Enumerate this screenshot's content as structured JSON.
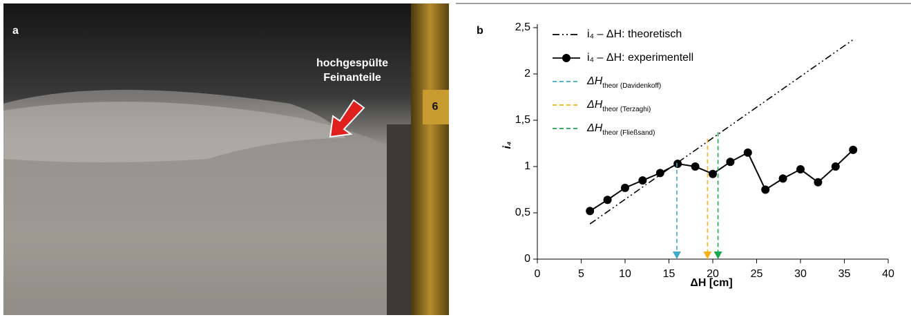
{
  "photo": {
    "label": "a",
    "annotation": [
      "hochgespülte",
      "Feinanteile"
    ]
  },
  "chart_data": {
    "type": "line",
    "label": "b",
    "x_label": "ΔH [cm]",
    "y_label": "i₄",
    "xlim": [
      0,
      40
    ],
    "xticks": [
      0,
      5,
      10,
      15,
      20,
      25,
      30,
      35,
      40
    ],
    "ylim": [
      0,
      2.5
    ],
    "yticks": [
      0,
      {
        "value": 0.5,
        "label": "0,5"
      },
      1,
      {
        "value": 1.5,
        "label": "1,5"
      },
      2,
      {
        "value": 2.5,
        "label": "2,5"
      }
    ],
    "legend": "upper left",
    "series": [
      {
        "name": "i₄ – ΔH: theoretisch",
        "color": "#000000",
        "linestyle": "dashdotdot",
        "marker": "none",
        "x": [
          6,
          36
        ],
        "values": [
          0.38,
          2.37
        ]
      },
      {
        "name": "i₄ – ΔH: experimentell",
        "color": "#000000",
        "linestyle": "solid",
        "marker": "circle",
        "x": [
          6,
          8,
          10,
          12,
          14,
          16,
          18,
          20,
          22,
          24,
          26,
          28,
          30,
          32,
          34,
          36
        ],
        "values": [
          0.52,
          0.64,
          0.77,
          0.85,
          0.93,
          1.03,
          1.0,
          0.92,
          1.05,
          1.15,
          0.75,
          0.87,
          0.97,
          0.83,
          1.0,
          1.18
        ]
      },
      {
        "name": "ΔH",
        "name_sub": "theor (Davidenkoff)",
        "color": "#3fa9c9",
        "linestyle": "dashed",
        "marker": "arrow",
        "x": [
          15.9,
          15.9
        ],
        "values": [
          1.04,
          0
        ]
      },
      {
        "name": "ΔH",
        "name_sub": "theor (Terzaghi)",
        "color": "#f5b21b",
        "linestyle": "dashed",
        "marker": "arrow",
        "x": [
          19.4,
          19.4
        ],
        "values": [
          1.3,
          0
        ]
      },
      {
        "name": "ΔH",
        "name_sub": "theor (Fließsand)",
        "color": "#1aa84f",
        "linestyle": "dashed",
        "marker": "arrow",
        "x": [
          20.6,
          20.6
        ],
        "values": [
          1.37,
          0
        ]
      }
    ]
  }
}
